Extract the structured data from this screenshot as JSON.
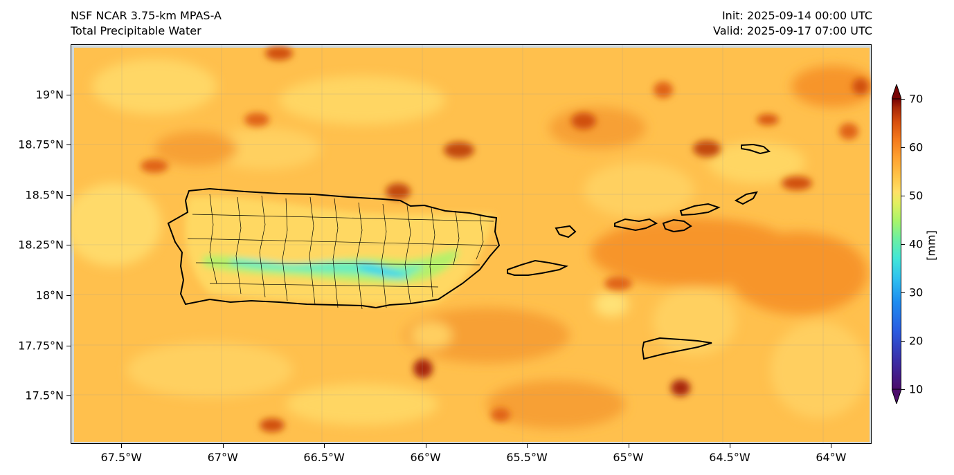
{
  "header": {
    "model_line": "NSF NCAR 3.75-km MPAS-A",
    "field_line": "Total Precipitable Water",
    "init_line": "Init: 2025-09-14 00:00 UTC",
    "valid_line": "Valid: 2025-09-17 07:00 UTC"
  },
  "axes": {
    "lat_ticks": [
      "19°N",
      "18.75°N",
      "18.5°N",
      "18.25°N",
      "18°N",
      "17.75°N",
      "17.5°N"
    ],
    "lat_values": [
      19.0,
      18.75,
      18.5,
      18.25,
      18.0,
      17.75,
      17.5
    ],
    "lon_ticks": [
      "67.5°W",
      "67°W",
      "66.5°W",
      "66°W",
      "65.5°W",
      "65°W",
      "64.5°W",
      "64°W"
    ],
    "lon_values": [
      -67.5,
      -67.0,
      -66.5,
      -66.0,
      -65.5,
      -65.0,
      -64.5,
      -64.0
    ],
    "lat_range": [
      17.26,
      19.25
    ],
    "lon_range": [
      -67.75,
      -63.8
    ]
  },
  "colorbar": {
    "label": "[mm]",
    "ticks": [
      "70",
      "60",
      "50",
      "40",
      "30",
      "20",
      "10"
    ],
    "range": [
      10,
      70
    ],
    "extend": "both",
    "colors": [
      "#4b0c6b",
      "#3b2fa8",
      "#2a5be0",
      "#1e8cf0",
      "#2fc0f0",
      "#42e6d8",
      "#6ef0a0",
      "#a8f46a",
      "#e2f060",
      "#ffe066",
      "#ffc64a",
      "#ffa030",
      "#f47a1c",
      "#d8500e",
      "#a82808",
      "#780404"
    ]
  },
  "map": {
    "background_color": "#ffc04d",
    "coastline_color": "#000000"
  }
}
